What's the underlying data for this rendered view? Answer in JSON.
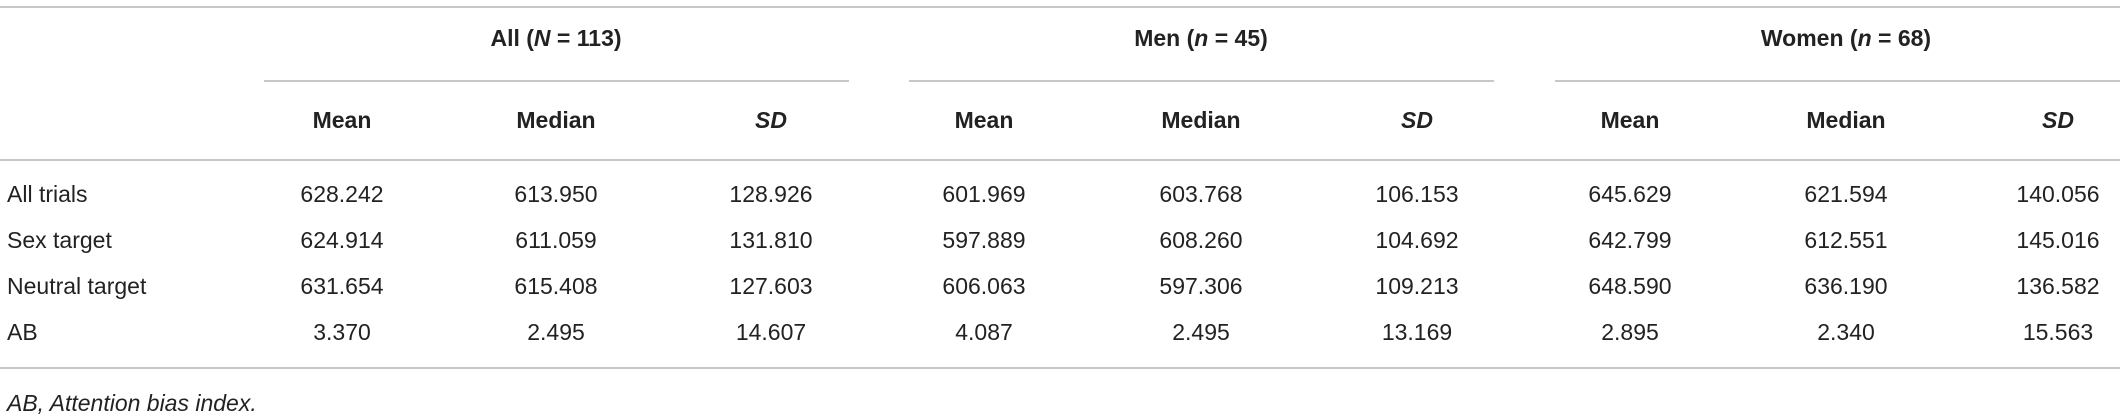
{
  "table": {
    "groups": [
      {
        "label_parts": [
          "All (",
          "N",
          " = 113)"
        ],
        "columns": [
          "Mean",
          "Median",
          "SD"
        ]
      },
      {
        "label_parts": [
          "Men (",
          "n",
          " = 45)"
        ],
        "columns": [
          "Mean",
          "Median",
          "SD"
        ]
      },
      {
        "label_parts": [
          "Women (",
          "n",
          " = 68)"
        ],
        "columns": [
          "Mean",
          "Median",
          "SD"
        ]
      }
    ],
    "rows": [
      {
        "label": "All trials",
        "values": [
          "628.242",
          "613.950",
          "128.926",
          "601.969",
          "603.768",
          "106.153",
          "645.629",
          "621.594",
          "140.056"
        ]
      },
      {
        "label": "Sex target",
        "values": [
          "624.914",
          "611.059",
          "131.810",
          "597.889",
          "608.260",
          "104.692",
          "642.799",
          "612.551",
          "145.016"
        ]
      },
      {
        "label": "Neutral target",
        "values": [
          "631.654",
          "615.408",
          "127.603",
          "606.063",
          "597.306",
          "109.213",
          "648.590",
          "636.190",
          "136.582"
        ]
      },
      {
        "label": "AB",
        "values": [
          "3.370",
          "2.495",
          "14.607",
          "4.087",
          "2.495",
          "13.169",
          "2.895",
          "2.340",
          "15.563"
        ]
      }
    ]
  },
  "footnote": "AB, Attention bias index."
}
